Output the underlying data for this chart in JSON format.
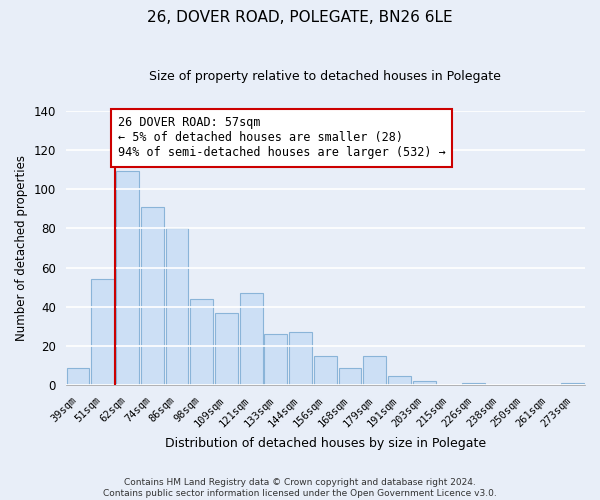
{
  "title": "26, DOVER ROAD, POLEGATE, BN26 6LE",
  "subtitle": "Size of property relative to detached houses in Polegate",
  "xlabel": "Distribution of detached houses by size in Polegate",
  "ylabel": "Number of detached properties",
  "bar_labels": [
    "39sqm",
    "51sqm",
    "62sqm",
    "74sqm",
    "86sqm",
    "98sqm",
    "109sqm",
    "121sqm",
    "133sqm",
    "144sqm",
    "156sqm",
    "168sqm",
    "179sqm",
    "191sqm",
    "203sqm",
    "215sqm",
    "226sqm",
    "238sqm",
    "250sqm",
    "261sqm",
    "273sqm"
  ],
  "bar_values": [
    9,
    54,
    109,
    91,
    80,
    44,
    37,
    47,
    26,
    27,
    15,
    9,
    15,
    5,
    2,
    0,
    1,
    0,
    0,
    0,
    1
  ],
  "bar_color": "#ccdff5",
  "bar_edge_color": "#8ab4d8",
  "vline_color": "#cc0000",
  "annotation_text": "26 DOVER ROAD: 57sqm\n← 5% of detached houses are smaller (28)\n94% of semi-detached houses are larger (532) →",
  "annotation_box_color": "#ffffff",
  "annotation_border_color": "#cc0000",
  "ylim": [
    0,
    140
  ],
  "yticks": [
    0,
    20,
    40,
    60,
    80,
    100,
    120,
    140
  ],
  "footer_line1": "Contains HM Land Registry data © Crown copyright and database right 2024.",
  "footer_line2": "Contains public sector information licensed under the Open Government Licence v3.0.",
  "background_color": "#e8eef8",
  "plot_bg_color": "#e8eef8",
  "grid_color": "#d0d8e8",
  "figsize": [
    6.0,
    5.0
  ],
  "dpi": 100
}
